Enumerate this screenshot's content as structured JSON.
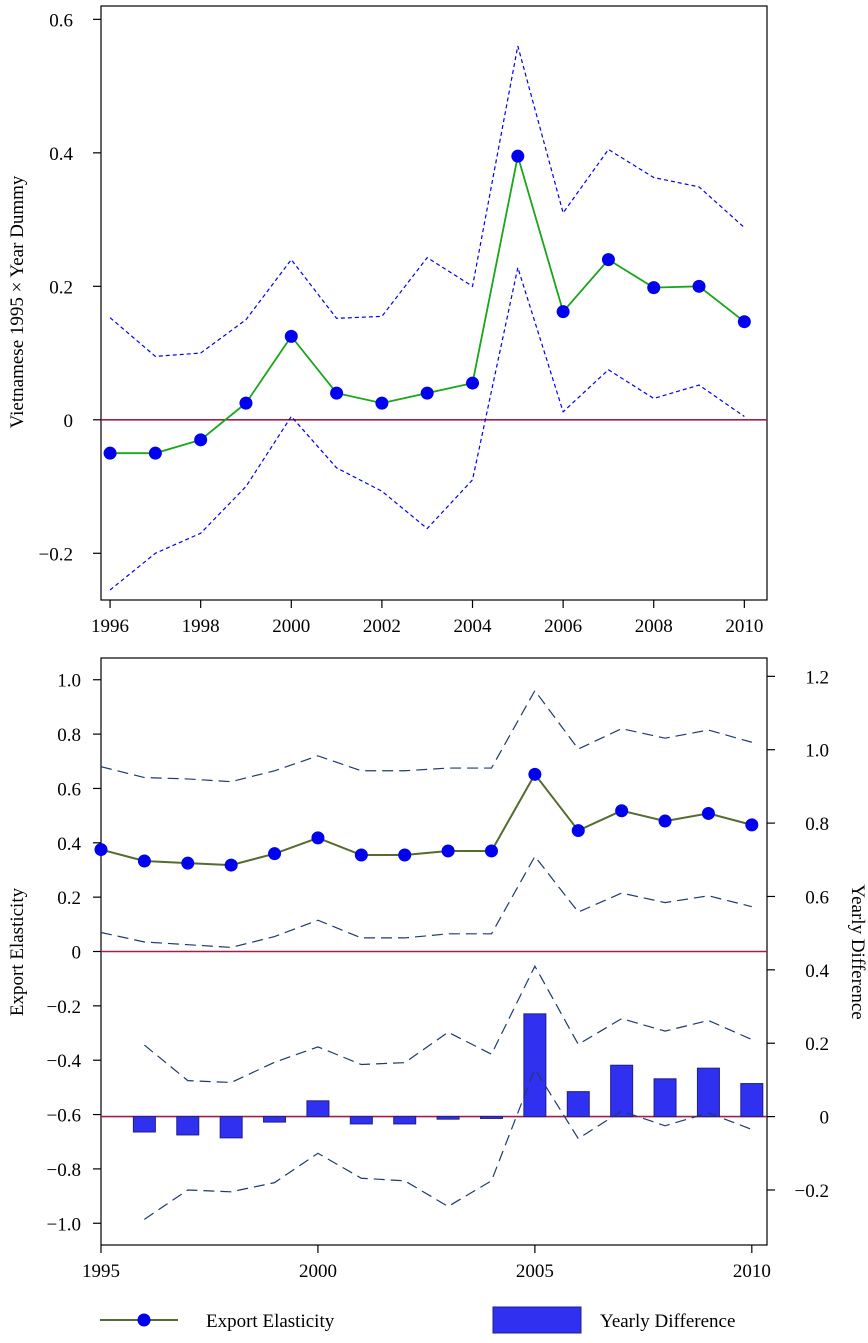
{
  "chart_data": [
    {
      "type": "line",
      "ylabel": "Vietnamese 1995 × Year Dummy",
      "xlim": [
        1995.8,
        2010.5
      ],
      "ylim": [
        -0.27,
        0.62
      ],
      "xticks": [
        "1996",
        "1998",
        "2000",
        "2002",
        "2004",
        "2006",
        "2008",
        "2010"
      ],
      "yticks": [
        "0.6",
        "0.4",
        "0.2",
        "0",
        "−0.2"
      ],
      "x": [
        1996,
        1997,
        1998,
        1999,
        2000,
        2001,
        2002,
        2003,
        2004,
        2005,
        2006,
        2007,
        2008,
        2009,
        2010
      ],
      "series": [
        {
          "role": "estimate",
          "color": "#1aa51a",
          "marker": "#0000ee",
          "values": [
            -0.05,
            -0.05,
            -0.03,
            0.025,
            0.125,
            0.04,
            0.025,
            0.04,
            0.055,
            0.395,
            0.162,
            0.24,
            0.198,
            0.2,
            0.147
          ]
        },
        {
          "role": "upper-ci",
          "color": "#0000ee",
          "style": "dashed",
          "values": [
            0.153,
            0.095,
            0.1,
            0.15,
            0.24,
            0.152,
            0.155,
            0.243,
            0.2,
            0.56,
            0.31,
            0.405,
            0.363,
            0.349,
            0.288
          ]
        },
        {
          "role": "lower-ci",
          "color": "#0000ee",
          "style": "dashed",
          "values": [
            -0.255,
            -0.2,
            -0.17,
            -0.1,
            0.005,
            -0.072,
            -0.107,
            -0.163,
            -0.09,
            0.228,
            0.012,
            0.075,
            0.032,
            0.052,
            0.005
          ]
        }
      ],
      "reference_line": {
        "y": 0,
        "color": "#a0204a"
      }
    },
    {
      "type": "bar+line",
      "ylabel": "Export Elasticity",
      "y2label": "Yearly Difference",
      "xlim": [
        1995,
        2010.35
      ],
      "ylim": [
        -1.08,
        1.08
      ],
      "y2lim": [
        -0.35,
        1.25
      ],
      "xticks": [
        "1995",
        "2000",
        "2005",
        "2010"
      ],
      "yticks": [
        "1.0",
        "0.8",
        "0.6",
        "0.4",
        "0.2",
        "0",
        "−0.2",
        "−0.4",
        "−0.6",
        "−0.8",
        "−1.0"
      ],
      "y2ticks": [
        "1.2",
        "1.0",
        "0.8",
        "0.6",
        "0.4",
        "0.2",
        "0",
        "−0.2"
      ],
      "line_series": {
        "name": "Export Elasticity",
        "color": "#556b2f",
        "marker": "#0000ee",
        "x": [
          1995,
          1996,
          1997,
          1998,
          1999,
          2000,
          2001,
          2002,
          2003,
          2004,
          2005,
          2006,
          2007,
          2008,
          2009,
          2010
        ],
        "values": [
          0.375,
          0.333,
          0.325,
          0.318,
          0.36,
          0.418,
          0.355,
          0.355,
          0.37,
          0.37,
          0.652,
          0.445,
          0.518,
          0.48,
          0.508,
          0.466
        ],
        "upper_ci": [
          0.68,
          0.64,
          0.635,
          0.625,
          0.665,
          0.72,
          0.665,
          0.665,
          0.675,
          0.675,
          0.96,
          0.745,
          0.82,
          0.785,
          0.815,
          0.77
        ],
        "lower_ci": [
          0.07,
          0.035,
          0.025,
          0.015,
          0.055,
          0.115,
          0.05,
          0.05,
          0.065,
          0.065,
          0.35,
          0.145,
          0.215,
          0.18,
          0.205,
          0.165
        ],
        "ci_color": "#1f3a6e"
      },
      "bar_series": {
        "name": "Yearly Difference",
        "color": "#3030f0",
        "edge": "#1f1f8a",
        "x": [
          1996,
          1997,
          1998,
          1999,
          2000,
          2001,
          2002,
          2003,
          2004,
          2005,
          2006,
          2007,
          2008,
          2009,
          2010
        ],
        "values": [
          -0.042,
          -0.05,
          -0.058,
          -0.015,
          0.043,
          -0.02,
          -0.02,
          -0.007,
          -0.005,
          0.28,
          0.068,
          0.14,
          0.103,
          0.132,
          0.09
        ],
        "upper_ci": [
          0.195,
          0.098,
          0.093,
          0.148,
          0.19,
          0.142,
          0.147,
          0.23,
          0.17,
          0.41,
          0.197,
          0.267,
          0.233,
          0.262,
          0.21
        ],
        "lower_ci": [
          -0.28,
          -0.2,
          -0.205,
          -0.18,
          -0.1,
          -0.168,
          -0.175,
          -0.245,
          -0.175,
          0.13,
          -0.06,
          0.015,
          -0.025,
          0.01,
          -0.035
        ]
      },
      "reference_lines": [
        {
          "axis": "y",
          "value": 0,
          "color": "#a0204a"
        },
        {
          "axis": "y2",
          "value": 0,
          "color": "#a0204a"
        }
      ],
      "legend": {
        "placement": "bottom",
        "items": [
          "Export Elasticity",
          "Yearly Difference"
        ]
      }
    }
  ]
}
